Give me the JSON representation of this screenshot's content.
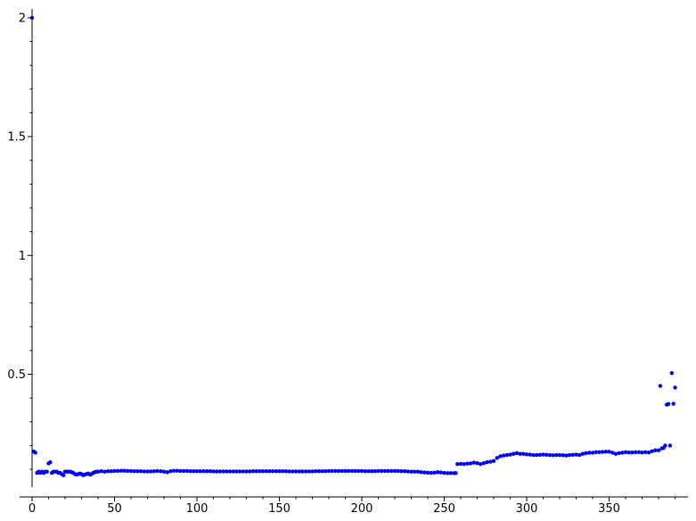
{
  "chart_data": {
    "type": "scatter",
    "title": "",
    "xlabel": "",
    "ylabel": "",
    "xlim": [
      0,
      390
    ],
    "ylim": [
      0.05,
      2.02
    ],
    "grid": false,
    "legend": "none",
    "marker_color": "#0000ff",
    "x_ticks": [
      0,
      50,
      100,
      150,
      200,
      250,
      300,
      350
    ],
    "x_tick_labels": [
      "0",
      "50",
      "100",
      "150",
      "200",
      "250",
      "300",
      "350"
    ],
    "y_ticks": [
      0.5,
      1,
      1.5,
      2
    ],
    "y_tick_labels": [
      "0.5",
      "1",
      "1.5",
      "2"
    ],
    "y_minor_ticks": [
      0.1,
      0.2,
      0.3,
      0.4,
      0.6,
      0.7,
      0.8,
      0.9,
      1.1,
      1.2,
      1.3,
      1.4,
      1.6,
      1.7,
      1.8,
      1.9
    ],
    "series": [
      {
        "points": [
          [
            0,
            2.0
          ],
          [
            1,
            0.175
          ],
          [
            2,
            0.17
          ],
          [
            3,
            0.085
          ],
          [
            4,
            0.09
          ],
          [
            5,
            0.085
          ],
          [
            6,
            0.09
          ],
          [
            7,
            0.085
          ],
          [
            8,
            0.09
          ],
          [
            9,
            0.09
          ],
          [
            10,
            0.125
          ],
          [
            11,
            0.13
          ],
          [
            12,
            0.085
          ],
          [
            13,
            0.09
          ],
          [
            14,
            0.09
          ],
          [
            15,
            0.09
          ],
          [
            16,
            0.085
          ],
          [
            17,
            0.085
          ],
          [
            18,
            0.08
          ],
          [
            19,
            0.075
          ],
          [
            20,
            0.09
          ],
          [
            21,
            0.09
          ],
          [
            22,
            0.09
          ],
          [
            23,
            0.09
          ],
          [
            24,
            0.088
          ],
          [
            25,
            0.085
          ],
          [
            26,
            0.08
          ],
          [
            27,
            0.078
          ],
          [
            28,
            0.08
          ],
          [
            29,
            0.082
          ],
          [
            30,
            0.08
          ],
          [
            31,
            0.075
          ],
          [
            32,
            0.078
          ],
          [
            33,
            0.08
          ],
          [
            34,
            0.082
          ],
          [
            35,
            0.078
          ],
          [
            36,
            0.08
          ],
          [
            37,
            0.085
          ],
          [
            38,
            0.088
          ],
          [
            39,
            0.09
          ],
          [
            40,
            0.09
          ],
          [
            42,
            0.092
          ],
          [
            44,
            0.09
          ],
          [
            46,
            0.092
          ],
          [
            48,
            0.092
          ],
          [
            50,
            0.093
          ],
          [
            52,
            0.093
          ],
          [
            54,
            0.094
          ],
          [
            56,
            0.094
          ],
          [
            58,
            0.093
          ],
          [
            60,
            0.093
          ],
          [
            62,
            0.092
          ],
          [
            64,
            0.092
          ],
          [
            66,
            0.092
          ],
          [
            68,
            0.091
          ],
          [
            70,
            0.091
          ],
          [
            72,
            0.091
          ],
          [
            74,
            0.092
          ],
          [
            76,
            0.093
          ],
          [
            78,
            0.092
          ],
          [
            80,
            0.09
          ],
          [
            82,
            0.088
          ],
          [
            84,
            0.092
          ],
          [
            86,
            0.094
          ],
          [
            88,
            0.094
          ],
          [
            90,
            0.093
          ],
          [
            92,
            0.093
          ],
          [
            94,
            0.093
          ],
          [
            96,
            0.092
          ],
          [
            98,
            0.092
          ],
          [
            100,
            0.092
          ],
          [
            102,
            0.092
          ],
          [
            104,
            0.092
          ],
          [
            106,
            0.092
          ],
          [
            108,
            0.092
          ],
          [
            110,
            0.091
          ],
          [
            112,
            0.091
          ],
          [
            114,
            0.091
          ],
          [
            116,
            0.091
          ],
          [
            118,
            0.091
          ],
          [
            120,
            0.091
          ],
          [
            122,
            0.091
          ],
          [
            124,
            0.091
          ],
          [
            126,
            0.091
          ],
          [
            128,
            0.091
          ],
          [
            130,
            0.091
          ],
          [
            132,
            0.091
          ],
          [
            134,
            0.092
          ],
          [
            136,
            0.092
          ],
          [
            138,
            0.092
          ],
          [
            140,
            0.092
          ],
          [
            142,
            0.092
          ],
          [
            144,
            0.092
          ],
          [
            146,
            0.092
          ],
          [
            148,
            0.092
          ],
          [
            150,
            0.092
          ],
          [
            152,
            0.092
          ],
          [
            154,
            0.092
          ],
          [
            156,
            0.091
          ],
          [
            158,
            0.091
          ],
          [
            160,
            0.091
          ],
          [
            162,
            0.091
          ],
          [
            164,
            0.091
          ],
          [
            166,
            0.091
          ],
          [
            168,
            0.091
          ],
          [
            170,
            0.091
          ],
          [
            172,
            0.092
          ],
          [
            174,
            0.092
          ],
          [
            176,
            0.092
          ],
          [
            178,
            0.092
          ],
          [
            180,
            0.093
          ],
          [
            182,
            0.093
          ],
          [
            184,
            0.093
          ],
          [
            186,
            0.093
          ],
          [
            188,
            0.093
          ],
          [
            190,
            0.093
          ],
          [
            192,
            0.093
          ],
          [
            194,
            0.093
          ],
          [
            196,
            0.093
          ],
          [
            198,
            0.093
          ],
          [
            200,
            0.093
          ],
          [
            202,
            0.092
          ],
          [
            204,
            0.092
          ],
          [
            206,
            0.092
          ],
          [
            208,
            0.092
          ],
          [
            210,
            0.093
          ],
          [
            212,
            0.093
          ],
          [
            214,
            0.093
          ],
          [
            216,
            0.093
          ],
          [
            218,
            0.093
          ],
          [
            220,
            0.093
          ],
          [
            222,
            0.093
          ],
          [
            224,
            0.092
          ],
          [
            226,
            0.092
          ],
          [
            228,
            0.091
          ],
          [
            230,
            0.09
          ],
          [
            232,
            0.09
          ],
          [
            234,
            0.09
          ],
          [
            236,
            0.088
          ],
          [
            238,
            0.087
          ],
          [
            240,
            0.086
          ],
          [
            242,
            0.085
          ],
          [
            244,
            0.086
          ],
          [
            246,
            0.088
          ],
          [
            248,
            0.087
          ],
          [
            250,
            0.085
          ],
          [
            252,
            0.084
          ],
          [
            254,
            0.084
          ],
          [
            256,
            0.084
          ],
          [
            257,
            0.084
          ],
          [
            258,
            0.122
          ],
          [
            260,
            0.123
          ],
          [
            262,
            0.122
          ],
          [
            264,
            0.124
          ],
          [
            266,
            0.125
          ],
          [
            268,
            0.128
          ],
          [
            270,
            0.126
          ],
          [
            272,
            0.122
          ],
          [
            274,
            0.126
          ],
          [
            276,
            0.13
          ],
          [
            278,
            0.132
          ],
          [
            280,
            0.135
          ],
          [
            282,
            0.148
          ],
          [
            284,
            0.155
          ],
          [
            286,
            0.158
          ],
          [
            288,
            0.16
          ],
          [
            290,
            0.162
          ],
          [
            292,
            0.165
          ],
          [
            294,
            0.168
          ],
          [
            296,
            0.165
          ],
          [
            298,
            0.165
          ],
          [
            300,
            0.163
          ],
          [
            302,
            0.162
          ],
          [
            304,
            0.16
          ],
          [
            306,
            0.16
          ],
          [
            308,
            0.161
          ],
          [
            310,
            0.162
          ],
          [
            312,
            0.161
          ],
          [
            314,
            0.16
          ],
          [
            316,
            0.159
          ],
          [
            318,
            0.16
          ],
          [
            320,
            0.16
          ],
          [
            322,
            0.159
          ],
          [
            324,
            0.158
          ],
          [
            326,
            0.16
          ],
          [
            328,
            0.161
          ],
          [
            330,
            0.162
          ],
          [
            332,
            0.16
          ],
          [
            334,
            0.165
          ],
          [
            336,
            0.168
          ],
          [
            338,
            0.17
          ],
          [
            340,
            0.17
          ],
          [
            342,
            0.172
          ],
          [
            344,
            0.172
          ],
          [
            346,
            0.173
          ],
          [
            348,
            0.174
          ],
          [
            350,
            0.174
          ],
          [
            352,
            0.17
          ],
          [
            354,
            0.165
          ],
          [
            356,
            0.168
          ],
          [
            358,
            0.17
          ],
          [
            360,
            0.172
          ],
          [
            362,
            0.171
          ],
          [
            364,
            0.171
          ],
          [
            366,
            0.172
          ],
          [
            368,
            0.172
          ],
          [
            370,
            0.171
          ],
          [
            372,
            0.172
          ],
          [
            374,
            0.171
          ],
          [
            376,
            0.176
          ],
          [
            378,
            0.18
          ],
          [
            380,
            0.18
          ],
          [
            381,
            0.451
          ],
          [
            382,
            0.188
          ],
          [
            383,
            0.19
          ],
          [
            384,
            0.2
          ],
          [
            385,
            0.372
          ],
          [
            386,
            0.375
          ],
          [
            387,
            0.2
          ],
          [
            388,
            0.505
          ],
          [
            389,
            0.376
          ],
          [
            390,
            0.444
          ]
        ]
      }
    ]
  }
}
